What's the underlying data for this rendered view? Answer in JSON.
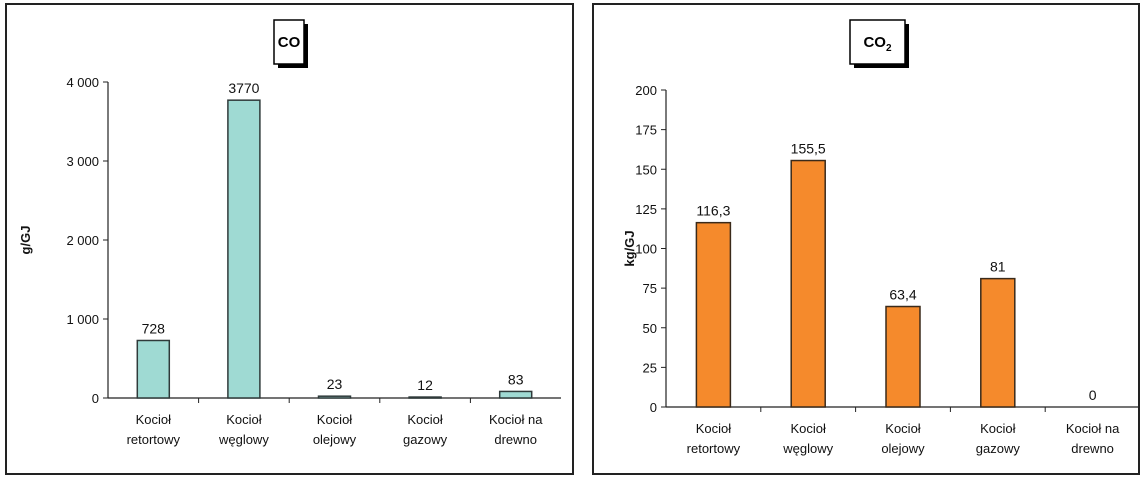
{
  "chart_data": [
    {
      "type": "bar",
      "title": "CO",
      "title_sub": "",
      "ylabel": "g/GJ",
      "xlabel": "",
      "ylim": [
        0,
        4000
      ],
      "yticks": [
        0,
        1000,
        2000,
        3000,
        4000
      ],
      "ytick_labels": [
        "0",
        "1 000",
        "2 000",
        "3 000",
        "4 000"
      ],
      "categories": [
        [
          "Kocioł",
          "retortowy"
        ],
        [
          "Kocioł",
          "węglowy"
        ],
        [
          "Kocioł",
          "olejowy"
        ],
        [
          "Kocioł",
          "gazowy"
        ],
        [
          "Kocioł na",
          "drewno"
        ]
      ],
      "values": [
        728,
        3770,
        23,
        12,
        83
      ],
      "value_labels": [
        "728",
        "3770",
        "23",
        "12",
        "83"
      ],
      "bar_color": "#9fdad3",
      "bar_edge": "#2f3a3a",
      "grid": false,
      "legend": "none"
    },
    {
      "type": "bar",
      "title": "CO",
      "title_sub": "2",
      "ylabel": "kg/GJ",
      "xlabel": "",
      "ylim": [
        0,
        200
      ],
      "yticks": [
        0,
        25,
        50,
        75,
        100,
        125,
        150,
        175,
        200
      ],
      "ytick_labels": [
        "0",
        "25",
        "50",
        "75",
        "100",
        "125",
        "150",
        "175",
        "200"
      ],
      "categories": [
        [
          "Kocioł",
          "retortowy"
        ],
        [
          "Kocioł",
          "węglowy"
        ],
        [
          "Kocioł",
          "olejowy"
        ],
        [
          "Kocioł",
          "gazowy"
        ],
        [
          "Kocioł na",
          "drewno"
        ]
      ],
      "values": [
        116.3,
        155.5,
        63.4,
        81,
        0
      ],
      "value_labels": [
        "116,3",
        "155,5",
        "63,4",
        "81",
        "0"
      ],
      "bar_color": "#f58a2c",
      "bar_edge": "#3a2a1a",
      "grid": false,
      "legend": "none"
    }
  ]
}
